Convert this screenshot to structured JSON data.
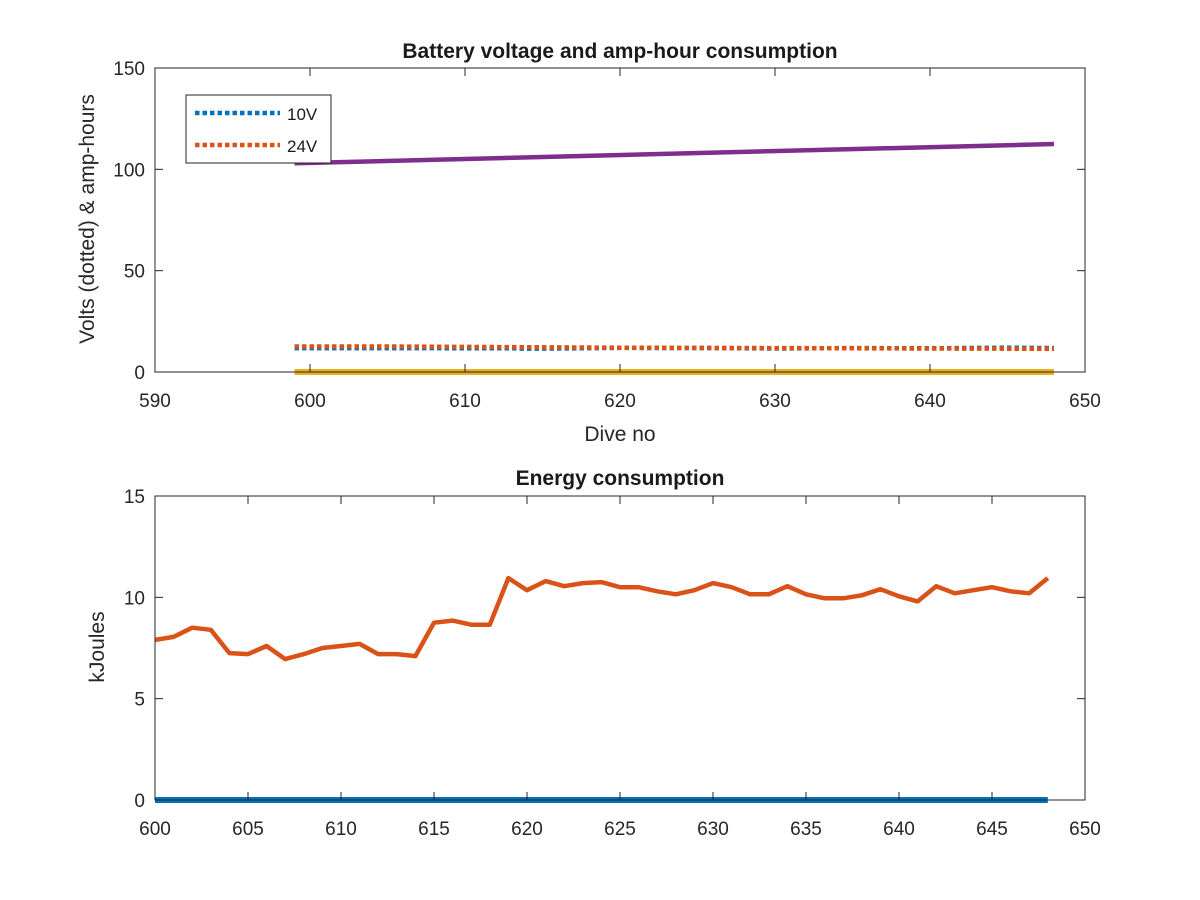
{
  "chart_data": [
    {
      "type": "line",
      "title": "Battery voltage and amp-hour consumption",
      "xlabel": "Dive no",
      "ylabel": "Volts (dotted) & amp-hours",
      "xlim": [
        590,
        650
      ],
      "ylim": [
        0,
        150
      ],
      "xticks": [
        590,
        600,
        610,
        620,
        630,
        640,
        650
      ],
      "yticks": [
        0,
        50,
        100,
        150
      ],
      "grid": false,
      "legend_position": "top-left",
      "series": [
        {
          "name": "10V",
          "style": "dotted",
          "color": "#0072BD",
          "x": [
            599,
            605,
            613,
            614,
            620,
            626,
            630,
            635,
            640,
            645,
            648
          ],
          "y": [
            11.8,
            11.8,
            11.7,
            11.5,
            11.9,
            11.8,
            11.6,
            11.8,
            11.7,
            12.0,
            11.8
          ]
        },
        {
          "name": "24V",
          "style": "dotted",
          "color": "#D95319",
          "x": [
            599,
            605,
            610,
            615,
            620,
            625,
            630,
            635,
            640,
            645,
            648
          ],
          "y": [
            12.6,
            12.6,
            12.4,
            12.2,
            12.0,
            11.9,
            11.8,
            11.7,
            11.6,
            11.5,
            11.5
          ]
        },
        {
          "style": "solid",
          "color": "#7E2F8E",
          "x": [
            599,
            648
          ],
          "y": [
            103,
            112.5
          ]
        },
        {
          "style": "solid",
          "color": "#EDB120",
          "x": [
            599,
            648
          ],
          "y": [
            0,
            0
          ]
        }
      ]
    },
    {
      "type": "line",
      "title": "Energy consumption",
      "xlabel": "",
      "ylabel": "kJoules",
      "xlim": [
        600,
        650
      ],
      "ylim": [
        0,
        15
      ],
      "xticks": [
        600,
        605,
        610,
        615,
        620,
        625,
        630,
        635,
        640,
        645,
        650
      ],
      "yticks": [
        0,
        5,
        10,
        15
      ],
      "grid": false,
      "series": [
        {
          "style": "solid",
          "color": "#D95319",
          "x": [
            600,
            601,
            602,
            603,
            604,
            605,
            606,
            607,
            608,
            609,
            610,
            611,
            612,
            613,
            614,
            615,
            616,
            617,
            618,
            619,
            620,
            621,
            622,
            623,
            624,
            625,
            626,
            627,
            628,
            629,
            630,
            631,
            632,
            633,
            634,
            635,
            636,
            637,
            638,
            639,
            640,
            641,
            642,
            643,
            644,
            645,
            646,
            647,
            648
          ],
          "y": [
            7.9,
            8.05,
            8.5,
            8.4,
            7.25,
            7.2,
            7.6,
            6.95,
            7.2,
            7.5,
            7.6,
            7.7,
            7.2,
            7.2,
            7.1,
            8.75,
            8.85,
            8.65,
            8.65,
            10.95,
            10.35,
            10.8,
            10.55,
            10.7,
            10.75,
            10.5,
            10.5,
            10.3,
            10.15,
            10.35,
            10.7,
            10.5,
            10.15,
            10.15,
            10.55,
            10.15,
            9.95,
            9.95,
            10.1,
            10.4,
            10.05,
            9.8,
            10.55,
            10.2,
            10.35,
            10.5,
            10.3,
            10.2,
            10.95
          ]
        },
        {
          "style": "solid",
          "color": "#0072BD",
          "x": [
            600,
            648
          ],
          "y": [
            0,
            0
          ]
        }
      ]
    }
  ]
}
